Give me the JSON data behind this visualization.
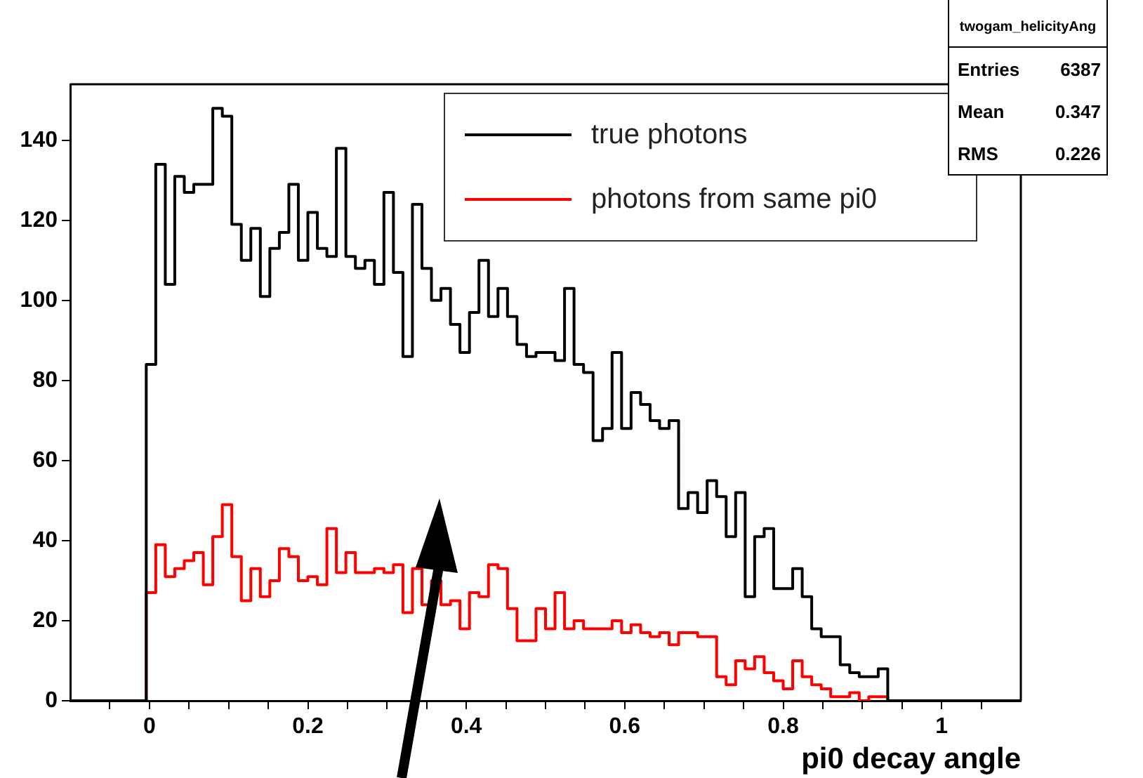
{
  "chart_data": {
    "type": "histogram",
    "xlabel": "pi0 decay angle",
    "bins": [
      -0.1,
      -0.088,
      -0.076,
      -0.064,
      -0.052,
      -0.04,
      -0.028,
      -0.016,
      -0.004,
      0.008,
      0.02,
      0.032,
      0.044,
      0.056,
      0.068,
      0.08,
      0.092,
      0.104,
      0.116,
      0.128,
      0.14,
      0.152,
      0.164,
      0.176,
      0.188,
      0.2,
      0.212,
      0.224,
      0.236,
      0.248,
      0.26,
      0.272,
      0.284,
      0.296,
      0.308,
      0.32,
      0.332,
      0.344,
      0.356,
      0.368,
      0.38,
      0.392,
      0.404,
      0.416,
      0.428,
      0.44,
      0.452,
      0.464,
      0.476,
      0.488,
      0.5,
      0.512,
      0.524,
      0.536,
      0.548,
      0.56,
      0.572,
      0.584,
      0.596,
      0.608,
      0.62,
      0.632,
      0.644,
      0.656,
      0.668,
      0.68,
      0.692,
      0.704,
      0.716,
      0.728,
      0.74,
      0.752,
      0.764,
      0.776,
      0.788,
      0.8,
      0.812,
      0.824,
      0.836,
      0.848,
      0.86,
      0.872,
      0.884,
      0.896,
      0.908,
      0.92,
      0.932,
      0.944,
      0.956,
      0.968,
      0.98,
      0.992,
      1.004,
      1.016,
      1.028,
      1.04,
      1.052,
      1.064,
      1.076,
      1.088,
      1.1
    ],
    "series": [
      {
        "name": "true photons",
        "color": "#000000",
        "values": [
          0,
          0,
          0,
          0,
          0,
          0,
          0,
          0,
          84,
          134,
          104,
          131,
          127,
          129,
          129,
          148,
          146,
          119,
          110,
          118,
          101,
          113,
          117,
          129,
          110,
          122,
          113,
          111,
          138,
          111,
          108,
          110,
          104,
          127,
          107,
          86,
          124,
          108,
          100,
          103,
          94,
          87,
          97,
          110,
          96,
          103,
          96,
          89,
          86,
          87,
          87,
          85,
          103,
          84,
          82,
          65,
          68,
          87,
          68,
          77,
          74,
          70,
          68,
          70,
          48,
          52,
          47,
          55,
          51,
          41,
          52,
          26,
          41,
          43,
          28,
          28,
          33,
          26,
          18,
          16,
          16,
          9,
          7,
          6,
          6,
          8,
          0,
          0,
          0,
          0,
          0,
          0,
          0,
          0,
          0,
          0,
          0,
          0,
          0,
          0
        ]
      },
      {
        "name": "photons from same pi0",
        "color": "#ff0000",
        "values": [
          0,
          0,
          0,
          0,
          0,
          0,
          0,
          0,
          27,
          39,
          31,
          33,
          35,
          37,
          29,
          41,
          49,
          36,
          25,
          33,
          26,
          30,
          38,
          36,
          30,
          31,
          29,
          43,
          32,
          37,
          32,
          32,
          33,
          32,
          34,
          22,
          33,
          24,
          30,
          24,
          25,
          18,
          27,
          26,
          34,
          33,
          23,
          15,
          15,
          23,
          18,
          27,
          18,
          20,
          18,
          18,
          18,
          20,
          17,
          19,
          17,
          16,
          17,
          14,
          17,
          17,
          16,
          16,
          6,
          4,
          10,
          8,
          11,
          7,
          5,
          3,
          10,
          6,
          4,
          3,
          1,
          1,
          2,
          0,
          1,
          1,
          0,
          0,
          0,
          0,
          0,
          0,
          0,
          0,
          0,
          0,
          0,
          0,
          0,
          0
        ]
      }
    ],
    "xlim": [
      -0.1,
      1.1
    ],
    "xticks": [
      {
        "value": -0.05,
        "label": null
      },
      0,
      {
        "value": 0.05,
        "label": null
      },
      {
        "value": 0.1,
        "label": null
      },
      {
        "value": 0.15,
        "label": null
      },
      0.2,
      {
        "value": 0.25,
        "label": null
      },
      {
        "value": 0.3,
        "label": null
      },
      {
        "value": 0.35,
        "label": null
      },
      0.4,
      {
        "value": 0.45,
        "label": null
      },
      {
        "value": 0.5,
        "label": null
      },
      {
        "value": 0.55,
        "label": null
      },
      0.6,
      {
        "value": 0.65,
        "label": null
      },
      {
        "value": 0.7,
        "label": null
      },
      {
        "value": 0.75,
        "label": null
      },
      0.8,
      {
        "value": 0.85,
        "label": null
      },
      {
        "value": 0.9,
        "label": null
      },
      {
        "value": 0.95,
        "label": null
      },
      1,
      {
        "value": 1.05,
        "label": null
      }
    ],
    "ylim": [
      0,
      154
    ],
    "yticks": [
      0,
      20,
      40,
      60,
      80,
      100,
      120,
      140
    ],
    "legend": "top right",
    "annotations": [
      "twogam_helicityAng",
      "Entries",
      "6387",
      "Mean",
      "0.347",
      "RMS",
      "0.226"
    ]
  }
}
